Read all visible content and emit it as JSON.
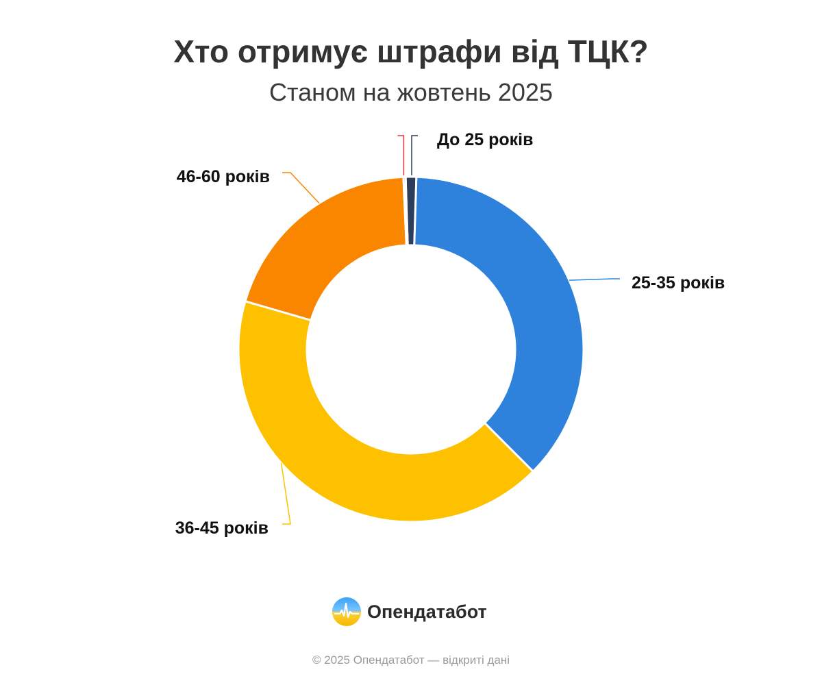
{
  "title": "Хто отримує штрафи від ТЦК?",
  "subtitle": "Станом на жовтень 2025",
  "chart_data": {
    "type": "pie",
    "subtype": "donut",
    "slices": [
      {
        "label": "До 25 років",
        "value": 1,
        "color": "#2c3e5c"
      },
      {
        "label": "25-35 років",
        "value": 37,
        "color": "#2e82dc"
      },
      {
        "label": "36-45 років",
        "value": 42,
        "color": "#fdc100"
      },
      {
        "label": "46-60 років",
        "value": 19.8,
        "color": "#fa8600"
      },
      {
        "label": "",
        "value": 0.2,
        "color": "#e8353c"
      }
    ],
    "legend": "none"
  },
  "brand": {
    "name": "Опендатабот"
  },
  "footer": "© 2025 Опендатабот — відкриті дані"
}
